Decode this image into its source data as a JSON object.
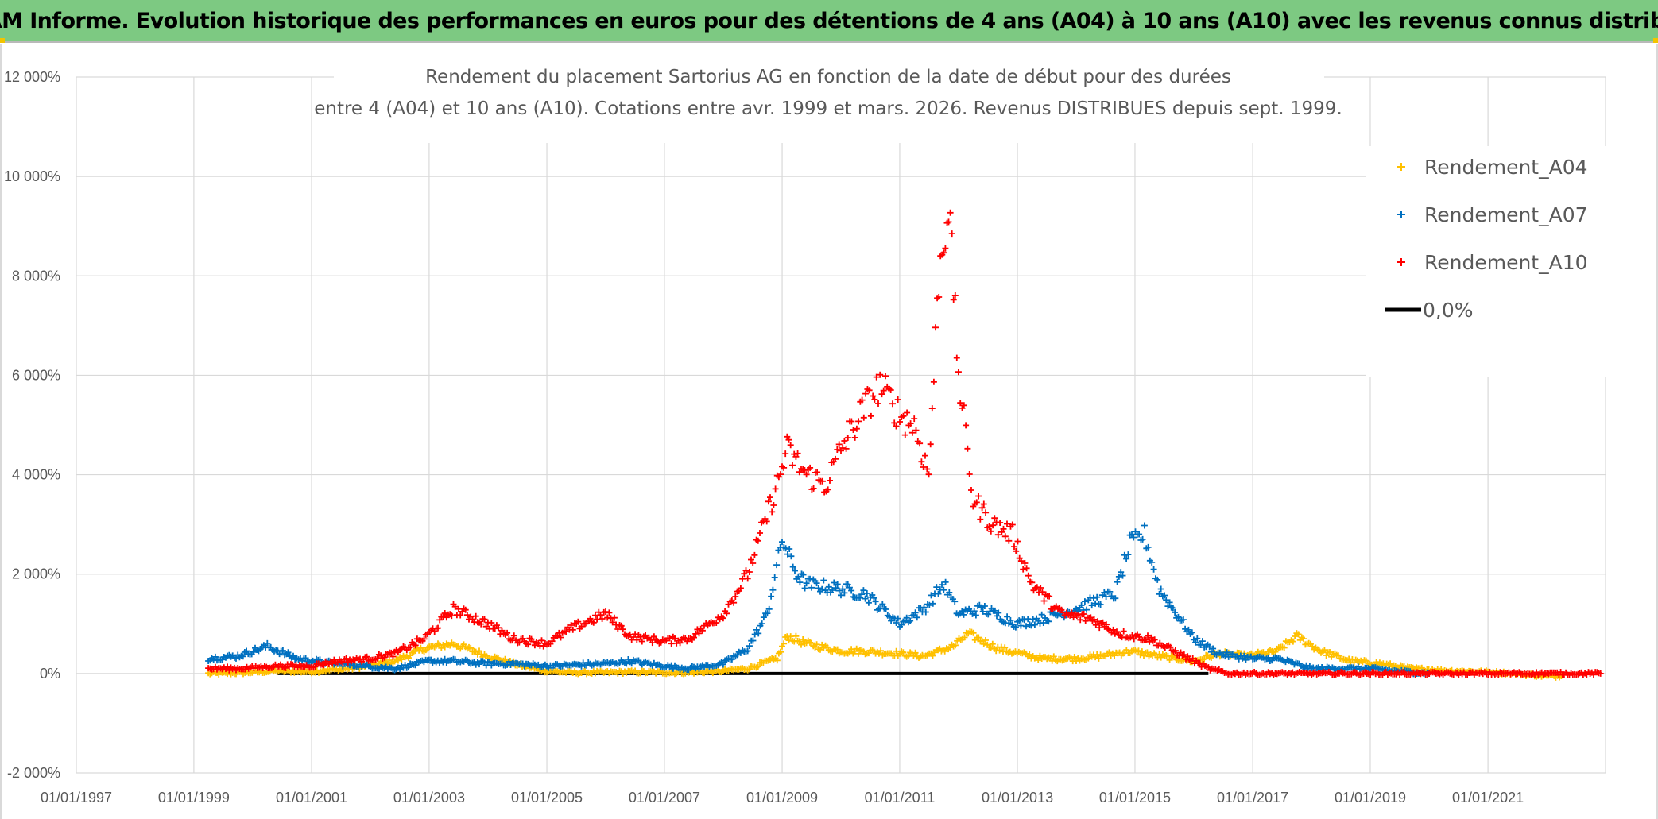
{
  "header": {
    "banner_title": "ADAM Informe. Evolution historique des performances en euros pour des détentions de 4 ans (A04) à 10 ans (A10) avec les revenus connus distribués"
  },
  "chart_data": {
    "type": "scatter",
    "title_line1": "Rendement du placement Sartorius AG en fonction de la date de début pour des durées",
    "title_line2": "entre 4 (A04) et 10 ans (A10). Cotations entre avr. 1999 et mars. 2026. Revenus DISTRIBUES depuis sept. 1999.",
    "xlabel": "",
    "ylabel": "",
    "x_range": [
      "1997-01-01",
      "2023-01-01"
    ],
    "y_range": [
      -2000,
      12000
    ],
    "y_ticks": [
      -2000,
      0,
      2000,
      4000,
      6000,
      8000,
      10000,
      12000
    ],
    "y_tick_labels": [
      "-2 000%",
      "0%",
      "2 000%",
      "4 000%",
      "6 000%",
      "8 000%",
      "10 000%",
      "12 000%"
    ],
    "x_tick_labels": [
      "01/01/1997",
      "01/01/1999",
      "01/01/2001",
      "01/01/2003",
      "01/01/2005",
      "01/01/2007",
      "01/01/2009",
      "01/01/2011",
      "01/01/2013",
      "01/01/2015",
      "01/01/2017",
      "01/01/2019",
      "01/01/2021"
    ],
    "grid": true,
    "legend_position": "top-right",
    "legend": [
      {
        "label": "Rendement_A04",
        "color": "#ffc000",
        "marker": "plus"
      },
      {
        "label": "Rendement_A07",
        "color": "#0070c0",
        "marker": "plus"
      },
      {
        "label": "Rendement_A10",
        "color": "#ff0000",
        "marker": "plus"
      },
      {
        "label": "0,0%",
        "color": "#000000",
        "marker": "line"
      }
    ],
    "series": [
      {
        "name": "Rendement_A04",
        "color": "#ffc000",
        "x": [
          "1999-04-01",
          "1999-10-01",
          "2000-06-01",
          "2001-01-01",
          "2001-09-01",
          "2002-06-01",
          "2002-12-01",
          "2003-06-01",
          "2004-01-01",
          "2004-08-01",
          "2005-01-01",
          "2005-06-01",
          "2006-01-01",
          "2006-06-01",
          "2007-01-01",
          "2007-06-01",
          "2008-01-01",
          "2008-06-01",
          "2008-12-01",
          "2009-02-01",
          "2009-06-01",
          "2010-01-01",
          "2010-06-01",
          "2011-01-01",
          "2011-06-01",
          "2011-12-01",
          "2012-03-01",
          "2012-09-01",
          "2013-06-01",
          "2014-01-01",
          "2014-06-01",
          "2014-12-01",
          "2015-06-01",
          "2016-01-01",
          "2016-06-01",
          "2016-12-01",
          "2017-06-01",
          "2017-10-01",
          "2018-03-01",
          "2018-09-01",
          "2019-03-01",
          "2019-09-01",
          "2020-06-01",
          "2021-01-01",
          "2021-06-01",
          "2022-01-01",
          "2022-04-01"
        ],
        "y": [
          0,
          10,
          50,
          40,
          100,
          250,
          500,
          600,
          350,
          150,
          50,
          20,
          20,
          30,
          20,
          20,
          50,
          100,
          300,
          750,
          600,
          450,
          450,
          400,
          350,
          550,
          800,
          500,
          300,
          300,
          350,
          450,
          350,
          250,
          400,
          350,
          450,
          750,
          450,
          250,
          200,
          100,
          50,
          30,
          0,
          -50,
          -50
        ]
      },
      {
        "name": "Rendement_A07",
        "color": "#0070c0",
        "x": [
          "1999-04-01",
          "1999-10-01",
          "2000-04-01",
          "2000-10-01",
          "2001-06-01",
          "2002-06-01",
          "2003-01-01",
          "2003-06-01",
          "2004-01-01",
          "2004-06-01",
          "2005-01-01",
          "2006-01-01",
          "2006-06-01",
          "2007-01-01",
          "2007-06-01",
          "2008-01-01",
          "2008-06-01",
          "2008-10-01",
          "2009-01-01",
          "2009-04-01",
          "2009-06-01",
          "2010-01-01",
          "2010-06-01",
          "2011-01-01",
          "2011-06-01",
          "2011-10-01",
          "2012-01-01",
          "2012-06-01",
          "2013-01-01",
          "2013-06-01",
          "2014-01-01",
          "2014-06-01",
          "2014-09-01",
          "2014-12-01",
          "2015-03-01",
          "2015-06-01",
          "2016-01-01",
          "2016-06-01",
          "2017-01-01",
          "2017-06-01",
          "2018-01-01",
          "2018-06-01",
          "2019-01-01",
          "2019-06-01",
          "2020-01-01"
        ],
        "y": [
          300,
          350,
          550,
          300,
          200,
          100,
          250,
          250,
          200,
          200,
          150,
          200,
          250,
          150,
          100,
          200,
          500,
          1200,
          2700,
          2000,
          1800,
          1700,
          1600,
          1000,
          1300,
          1800,
          1200,
          1300,
          1000,
          1100,
          1300,
          1500,
          1600,
          2600,
          2800,
          1700,
          700,
          400,
          300,
          300,
          100,
          100,
          100,
          50,
          0
        ]
      },
      {
        "name": "Rendement_A10",
        "color": "#ff0000",
        "x": [
          "1999-04-01",
          "1999-10-01",
          "2000-06-01",
          "2001-01-01",
          "2001-06-01",
          "2002-01-01",
          "2002-06-01",
          "2002-12-01",
          "2003-06-01",
          "2004-01-01",
          "2004-06-01",
          "2005-01-01",
          "2005-06-01",
          "2006-01-01",
          "2006-06-01",
          "2007-01-01",
          "2007-06-01",
          "2008-01-01",
          "2008-06-01",
          "2008-12-01",
          "2009-02-01",
          "2009-06-01",
          "2009-10-01",
          "2010-01-01",
          "2010-05-01",
          "2010-09-01",
          "2011-01-01",
          "2011-04-01",
          "2011-07-01",
          "2011-09-01",
          "2011-11-01",
          "2012-01-01",
          "2012-04-01",
          "2012-08-01",
          "2012-12-01",
          "2013-04-01",
          "2013-10-01",
          "2014-04-01",
          "2014-10-01",
          "2015-04-01",
          "2015-10-01",
          "2016-04-01",
          "2016-08-01",
          "2017-06-01",
          "2018-06-01",
          "2019-06-01",
          "2020-06-01",
          "2021-06-01",
          "2022-06-01",
          "2022-12-01"
        ],
        "y": [
          100,
          100,
          150,
          150,
          250,
          300,
          400,
          700,
          1300,
          1000,
          700,
          600,
          900,
          1200,
          750,
          650,
          700,
          1200,
          2000,
          3800,
          4500,
          4000,
          3800,
          4500,
          5200,
          5800,
          5200,
          5000,
          4000,
          8000,
          9500,
          6000,
          3500,
          3000,
          2800,
          1800,
          1200,
          1100,
          800,
          700,
          400,
          100,
          0,
          0,
          0,
          0,
          0,
          0,
          0,
          0
        ]
      },
      {
        "name": "0,0%",
        "color": "#000000",
        "x": [
          "2000-06-01",
          "2016-04-01"
        ],
        "y": [
          0,
          0
        ]
      }
    ]
  }
}
